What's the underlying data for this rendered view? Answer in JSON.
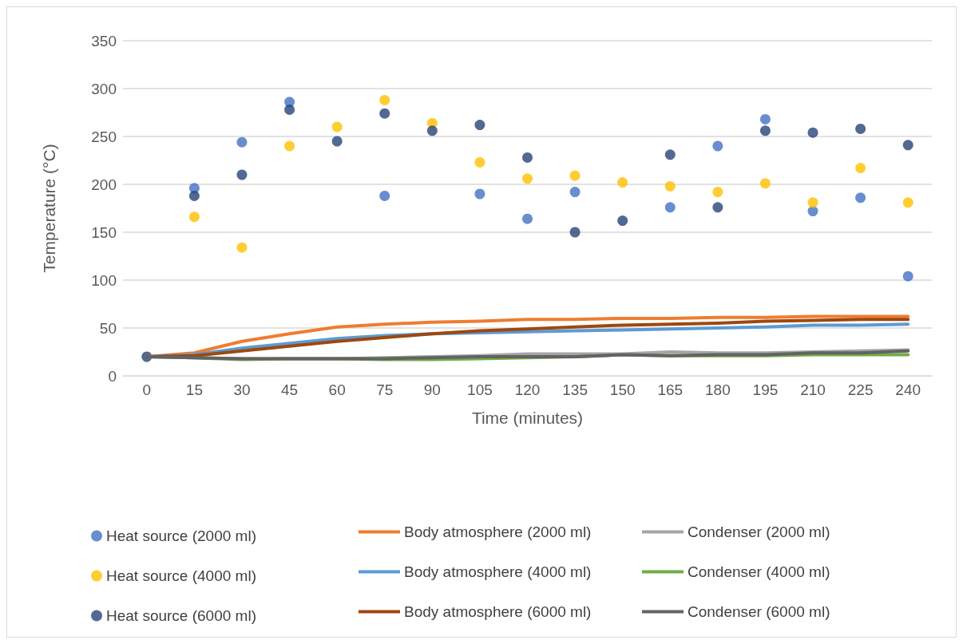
{
  "chart_data": {
    "type": "line",
    "xlabel": "Time (minutes)",
    "ylabel": "Temperature (°C)",
    "categories": [
      "0",
      "15",
      "30",
      "45",
      "60",
      "75",
      "90",
      "105",
      "120",
      "135",
      "150",
      "165",
      "180",
      "195",
      "210",
      "225",
      "240"
    ],
    "ylim": [
      0,
      350
    ],
    "yticks": [
      0,
      50,
      100,
      150,
      200,
      250,
      300,
      350
    ],
    "grid": "y",
    "legend": "bottom",
    "series": [
      {
        "name": "Heat source (2000 ml)",
        "type": "scatter",
        "marker": "circle",
        "color": "#4472c4",
        "values": [
          null,
          196,
          244,
          286,
          null,
          188,
          null,
          190,
          164,
          192,
          null,
          176,
          240,
          268,
          172,
          186,
          104
        ]
      },
      {
        "name": "Body atmosphere (2000 ml)",
        "marker": "none",
        "color": "#ed7d31",
        "values": [
          20,
          24,
          36,
          44,
          51,
          54,
          56,
          57,
          59,
          59,
          60,
          60,
          61,
          61,
          62,
          62,
          62
        ]
      },
      {
        "name": "Condenser (2000 ml)",
        "marker": "none",
        "color": "#a5a5a5",
        "values": [
          20,
          19,
          18,
          18,
          18,
          19,
          20,
          21,
          23,
          23,
          23,
          25,
          24,
          24,
          25,
          26,
          27
        ]
      },
      {
        "name": "Heat source (4000 ml)",
        "type": "scatter",
        "marker": "circle",
        "color": "#ffc000",
        "values": [
          null,
          166,
          134,
          240,
          260,
          288,
          264,
          223,
          206,
          209,
          202,
          198,
          192,
          201,
          181,
          217,
          181
        ]
      },
      {
        "name": "Body atmosphere (4000 ml)",
        "marker": "none",
        "color": "#5b9bd5",
        "values": [
          20,
          22,
          29,
          34,
          39,
          42,
          44,
          45,
          46,
          47,
          48,
          49,
          50,
          51,
          53,
          53,
          54
        ]
      },
      {
        "name": "Condenser (4000 ml)",
        "marker": "none",
        "color": "#70ad47",
        "values": [
          20,
          19,
          17,
          18,
          18,
          17,
          17,
          18,
          19,
          20,
          22,
          21,
          21,
          21,
          22,
          22,
          22
        ]
      },
      {
        "name": "Heat source (6000 ml)",
        "type": "scatter",
        "marker": "circle",
        "color": "#264478",
        "values": [
          20,
          188,
          210,
          278,
          245,
          274,
          256,
          262,
          228,
          150,
          162,
          231,
          176,
          256,
          254,
          258,
          241
        ]
      },
      {
        "name": "Body atmosphere (6000 ml)",
        "marker": "none",
        "color": "#9e480e",
        "values": [
          20,
          21,
          26,
          31,
          36,
          40,
          44,
          47,
          49,
          51,
          53,
          54,
          55,
          57,
          58,
          59,
          59
        ]
      },
      {
        "name": "Condenser (6000 ml)",
        "marker": "none",
        "color": "#636363",
        "values": [
          20,
          19,
          18,
          18,
          18,
          18,
          19,
          20,
          20,
          20,
          22,
          21,
          22,
          22,
          24,
          24,
          26
        ]
      }
    ]
  }
}
